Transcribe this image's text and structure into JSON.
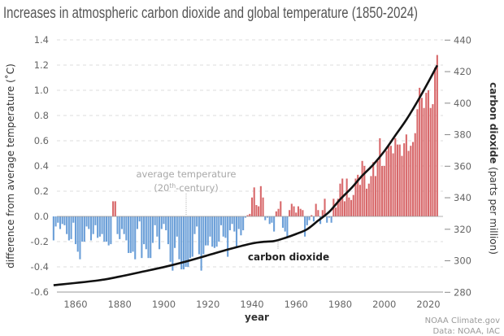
{
  "chart_data": {
    "type": "bar",
    "title": "Increases in atmospheric carbon dioxide and global temperature (1850-2024)",
    "xlabel": "year",
    "ylabel_left": "difference from  average temperature (˚C)",
    "ylabel_right_bold": "carbon dioxide",
    "ylabel_right_rest": " (parts per million)",
    "xlim": [
      1850,
      2024
    ],
    "ylim_left": [
      -0.6,
      1.4
    ],
    "ylim_right": [
      280,
      440
    ],
    "grid": true,
    "x_ticks": [
      "1860",
      "1880",
      "1900",
      "1920",
      "1940",
      "1960",
      "1980",
      "2000",
      "2020"
    ],
    "y_left_ticks": [
      "1.4",
      "1.2",
      "1.0",
      "0.8",
      "0.6",
      "0.4",
      "0.2",
      "0.0",
      "-0.2",
      "-0.4",
      "-0.6"
    ],
    "y_right_ticks": [
      "440",
      "420",
      "400",
      "380",
      "360",
      "340",
      "320",
      "300",
      "280"
    ],
    "colors": {
      "above": "#d8696b",
      "below": "#6b9fd8",
      "co2_line": "#111111",
      "grid": "#dddddd"
    },
    "temperature_anomaly": {
      "start_year": 1850,
      "values": [
        -0.19,
        -0.08,
        -0.05,
        -0.1,
        -0.06,
        -0.07,
        -0.14,
        -0.19,
        -0.18,
        -0.05,
        -0.22,
        -0.28,
        -0.34,
        -0.2,
        -0.2,
        -0.08,
        -0.1,
        -0.19,
        -0.14,
        -0.07,
        -0.17,
        -0.16,
        -0.14,
        -0.2,
        -0.2,
        -0.23,
        -0.22,
        0.12,
        0.12,
        -0.14,
        -0.18,
        -0.1,
        -0.14,
        -0.19,
        -0.29,
        -0.29,
        -0.28,
        -0.34,
        -0.1,
        -0.04,
        -0.33,
        -0.22,
        -0.26,
        -0.33,
        -0.33,
        -0.21,
        -0.07,
        -0.16,
        -0.26,
        -0.1,
        -0.06,
        -0.11,
        -0.22,
        -0.36,
        -0.43,
        -0.25,
        -0.16,
        -0.34,
        -0.42,
        -0.42,
        -0.4,
        -0.4,
        -0.33,
        -0.32,
        -0.14,
        -0.08,
        -0.3,
        -0.43,
        -0.3,
        -0.23,
        -0.23,
        -0.16,
        -0.24,
        -0.25,
        -0.24,
        -0.2,
        -0.07,
        -0.16,
        -0.17,
        -0.32,
        -0.11,
        -0.06,
        -0.12,
        -0.24,
        -0.1,
        -0.15,
        -0.11,
        -0.01,
        0.01,
        0.02,
        0.15,
        0.23,
        0.09,
        0.08,
        0.24,
        0.15,
        -0.03,
        -0.01,
        -0.06,
        -0.05,
        -0.12,
        0.04,
        0.06,
        0.12,
        -0.09,
        -0.12,
        -0.16,
        0.05,
        0.1,
        0.08,
        0.03,
        0.08,
        0.06,
        0.05,
        -0.16,
        -0.07,
        -0.03,
        0.01,
        -0.04,
        0.1,
        0.05,
        -0.06,
        0.05,
        0.14,
        -0.05,
        -0.01,
        -0.05,
        0.14,
        0.07,
        0.14,
        0.26,
        0.3,
        0.12,
        0.3,
        0.15,
        0.13,
        0.17,
        0.3,
        0.33,
        0.25,
        0.44,
        0.4,
        0.22,
        0.26,
        0.32,
        0.43,
        0.32,
        0.44,
        0.62,
        0.4,
        0.4,
        0.52,
        0.56,
        0.56,
        0.5,
        0.62,
        0.57,
        0.57,
        0.48,
        0.58,
        0.65,
        0.52,
        0.56,
        0.59,
        0.66,
        0.85,
        1.02,
        0.94,
        0.86,
        0.98,
        1.0,
        0.86,
        0.89,
        1.18,
        1.28
      ]
    },
    "co2_ppm": {
      "years": [
        1850,
        1870,
        1880,
        1890,
        1900,
        1910,
        1920,
        1930,
        1940,
        1945,
        1950,
        1955,
        1960,
        1965,
        1970,
        1975,
        1980,
        1985,
        1990,
        1995,
        2000,
        2005,
        2010,
        2015,
        2020,
        2024
      ],
      "values": [
        284.5,
        287.5,
        290,
        293,
        296,
        299.5,
        303.5,
        307.5,
        311,
        312,
        312.5,
        314.5,
        317,
        320,
        325.5,
        331,
        339,
        346,
        354,
        361,
        369.5,
        379.5,
        389.5,
        401,
        413.5,
        424
      ]
    },
    "annotations": {
      "avg_temp_line1": "average temperature",
      "avg_temp_line2_pre": "(20",
      "avg_temp_line2_sup": "th",
      "avg_temp_line2_post": "-century)",
      "co2_label": "carbon dioxide"
    }
  },
  "credits": {
    "line1": "NOAA Climate.gov",
    "line2": "Data: NOAA, IAC"
  }
}
